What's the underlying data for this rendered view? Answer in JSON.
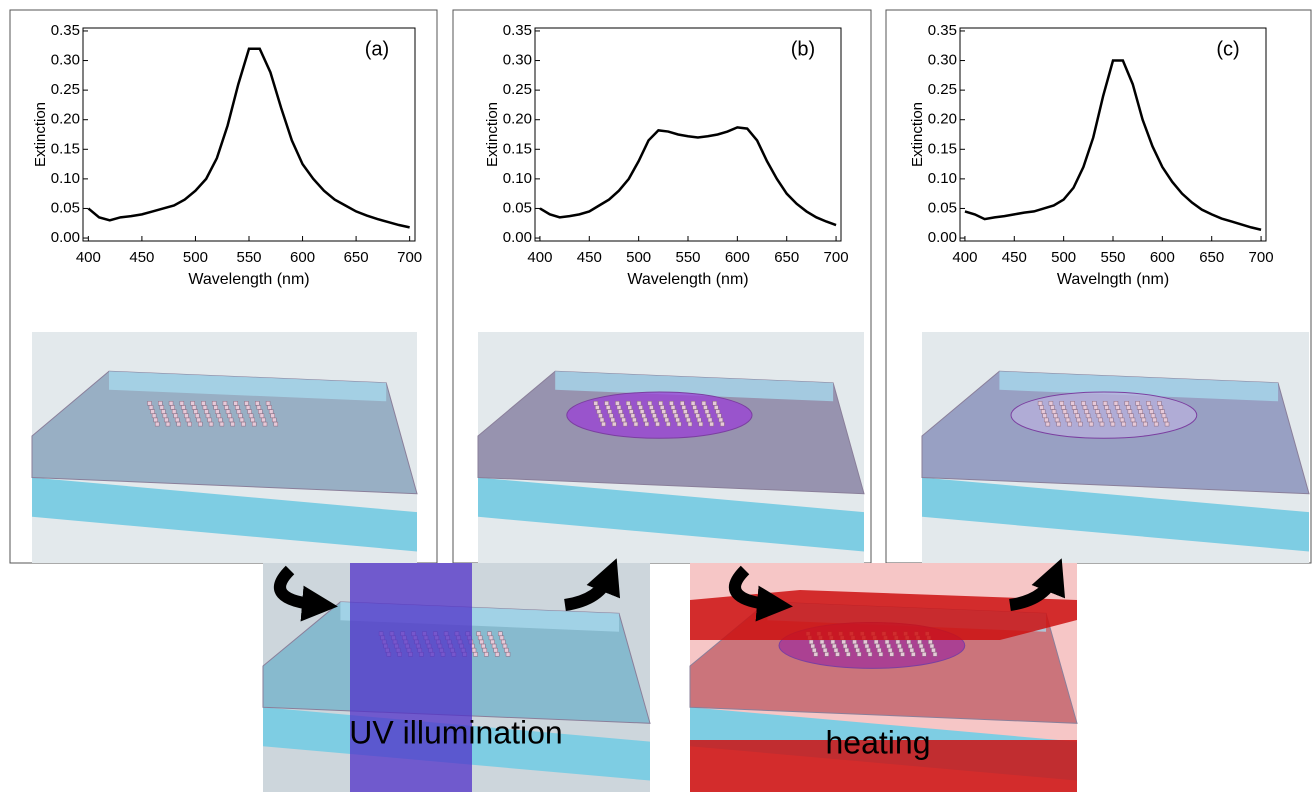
{
  "chart_data": [
    {
      "type": "line",
      "panel_label": "(a)",
      "x_label": "Wavelength (nm)",
      "y_label": "Extinction",
      "xlim": [
        395,
        705
      ],
      "ylim": [
        -0.005,
        0.355
      ],
      "xticks": [
        400,
        450,
        500,
        550,
        600,
        650,
        700
      ],
      "yticks": [
        {
          "value": 0,
          "label": "0.00"
        },
        0.05,
        {
          "value": 0.1,
          "label": "0.10"
        },
        0.15,
        {
          "value": 0.2,
          "label": "0.20"
        },
        0.25,
        {
          "value": 0.3,
          "label": "0.30"
        },
        0.35
      ],
      "x": [
        400,
        410,
        420,
        430,
        440,
        450,
        460,
        470,
        480,
        490,
        500,
        510,
        520,
        530,
        540,
        550,
        560,
        570,
        580,
        590,
        600,
        610,
        620,
        630,
        640,
        650,
        660,
        670,
        680,
        690,
        700
      ],
      "series": [
        {
          "color": "#000000",
          "values": [
            0.05,
            0.035,
            0.03,
            0.035,
            0.037,
            0.04,
            0.045,
            0.05,
            0.055,
            0.065,
            0.08,
            0.1,
            0.135,
            0.19,
            0.26,
            0.32,
            0.32,
            0.28,
            0.22,
            0.165,
            0.125,
            0.1,
            0.08,
            0.065,
            0.055,
            0.045,
            0.038,
            0.032,
            0.027,
            0.022,
            0.018
          ]
        }
      ]
    },
    {
      "type": "line",
      "panel_label": "(b)",
      "x_label": "Wavelength (nm)",
      "y_label": "Extinction",
      "xlim": [
        395,
        705
      ],
      "ylim": [
        -0.005,
        0.355
      ],
      "xticks": [
        400,
        450,
        500,
        550,
        600,
        650,
        700
      ],
      "yticks": [
        {
          "value": 0,
          "label": "0.00"
        },
        0.05,
        {
          "value": 0.1,
          "label": "0.10"
        },
        0.15,
        {
          "value": 0.2,
          "label": "0.20"
        },
        0.25,
        {
          "value": 0.3,
          "label": "0.30"
        },
        0.35
      ],
      "x": [
        400,
        410,
        420,
        430,
        440,
        450,
        460,
        470,
        480,
        490,
        500,
        510,
        520,
        530,
        540,
        550,
        560,
        570,
        580,
        590,
        600,
        610,
        620,
        630,
        640,
        650,
        660,
        670,
        680,
        690,
        700
      ],
      "series": [
        {
          "color": "#000000",
          "values": [
            0.05,
            0.04,
            0.035,
            0.037,
            0.04,
            0.045,
            0.055,
            0.065,
            0.08,
            0.1,
            0.13,
            0.165,
            0.182,
            0.18,
            0.175,
            0.172,
            0.17,
            0.172,
            0.175,
            0.18,
            0.187,
            0.185,
            0.165,
            0.13,
            0.1,
            0.075,
            0.058,
            0.045,
            0.035,
            0.028,
            0.022
          ]
        }
      ]
    },
    {
      "type": "line",
      "panel_label": "(c)",
      "x_label": "Wavelngth (nm)",
      "y_label": "Extinction",
      "xlim": [
        395,
        705
      ],
      "ylim": [
        -0.005,
        0.355
      ],
      "xticks": [
        400,
        450,
        500,
        550,
        600,
        650,
        700
      ],
      "yticks": [
        {
          "value": 0,
          "label": "0.00"
        },
        0.05,
        {
          "value": 0.1,
          "label": "0.10"
        },
        0.15,
        {
          "value": 0.2,
          "label": "0.20"
        },
        0.25,
        {
          "value": 0.3,
          "label": "0.30"
        },
        0.35
      ],
      "x": [
        400,
        410,
        420,
        430,
        440,
        450,
        460,
        470,
        480,
        490,
        500,
        510,
        520,
        530,
        540,
        550,
        560,
        570,
        580,
        590,
        600,
        610,
        620,
        630,
        640,
        650,
        660,
        670,
        680,
        690,
        700
      ],
      "series": [
        {
          "color": "#000000",
          "values": [
            0.045,
            0.04,
            0.032,
            0.035,
            0.037,
            0.04,
            0.043,
            0.045,
            0.05,
            0.055,
            0.065,
            0.085,
            0.12,
            0.17,
            0.24,
            0.3,
            0.3,
            0.26,
            0.2,
            0.155,
            0.12,
            0.095,
            0.075,
            0.06,
            0.048,
            0.04,
            0.033,
            0.028,
            0.023,
            0.018,
            0.014
          ]
        }
      ]
    }
  ],
  "steps": {
    "uv_label": "UV illumination",
    "heating_label": "heating"
  }
}
